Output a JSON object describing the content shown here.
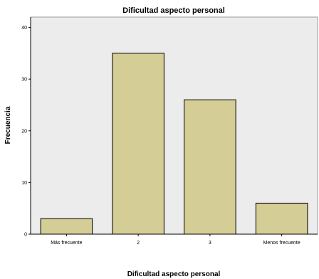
{
  "chart_data": {
    "type": "bar",
    "title": "Dificultad aspecto personal",
    "xlabel": "Dificultad aspecto personal",
    "ylabel": "Frecuencia",
    "categories": [
      "Más frecuente",
      "2",
      "3",
      "Menos frecuente"
    ],
    "values": [
      3,
      35,
      26,
      6
    ],
    "ylim": [
      0,
      42
    ],
    "yticks": [
      0,
      10,
      20,
      30,
      40
    ],
    "grid": false,
    "colors": {
      "bar_fill": "#d5cd96",
      "bar_stroke": "#000000",
      "plot_background": "#ececec",
      "plot_border": "#9a9a9a"
    }
  }
}
